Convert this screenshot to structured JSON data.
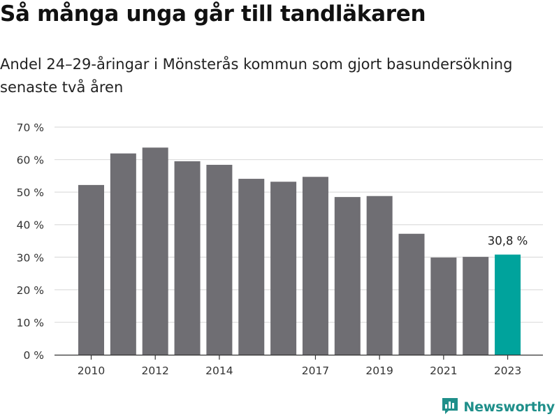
{
  "title": "Så många unga går till tandläkaren",
  "subtitle": "Andel 24–29-åringar i Mönsterås kommun som gjort basundersökning senaste två åren",
  "brand": {
    "name": "Newsworthy",
    "icon": "newsworthy-logo-icon",
    "color": "#1f8f8a"
  },
  "chart_data": {
    "type": "bar",
    "categories": [
      "2010",
      "2011",
      "2012",
      "2013",
      "2014",
      "2015",
      "2016",
      "2017",
      "2018",
      "2019",
      "2020",
      "2021",
      "2022",
      "2023"
    ],
    "x_tick_labels": [
      "2010",
      "",
      "2012",
      "",
      "2014",
      "",
      "",
      "2017",
      "",
      "2019",
      "",
      "2021",
      "",
      "2023"
    ],
    "values": [
      52.2,
      61.9,
      63.7,
      59.5,
      58.4,
      54.1,
      53.2,
      54.7,
      48.5,
      48.8,
      37.2,
      29.9,
      30.1,
      30.8
    ],
    "highlight_index": 13,
    "highlight_label": "30,8 %",
    "ylim": [
      0,
      70
    ],
    "y_ticks": [
      0,
      10,
      20,
      30,
      40,
      50,
      60,
      70
    ],
    "y_tick_labels": [
      "0 %",
      "10 %",
      "20 %",
      "30 %",
      "40 %",
      "50 %",
      "60 %",
      "70 %"
    ],
    "grid": true,
    "colors": {
      "bar": "#6f6e73",
      "highlight": "#00a39c",
      "grid": "#dddddd",
      "axis": "#333333"
    }
  }
}
